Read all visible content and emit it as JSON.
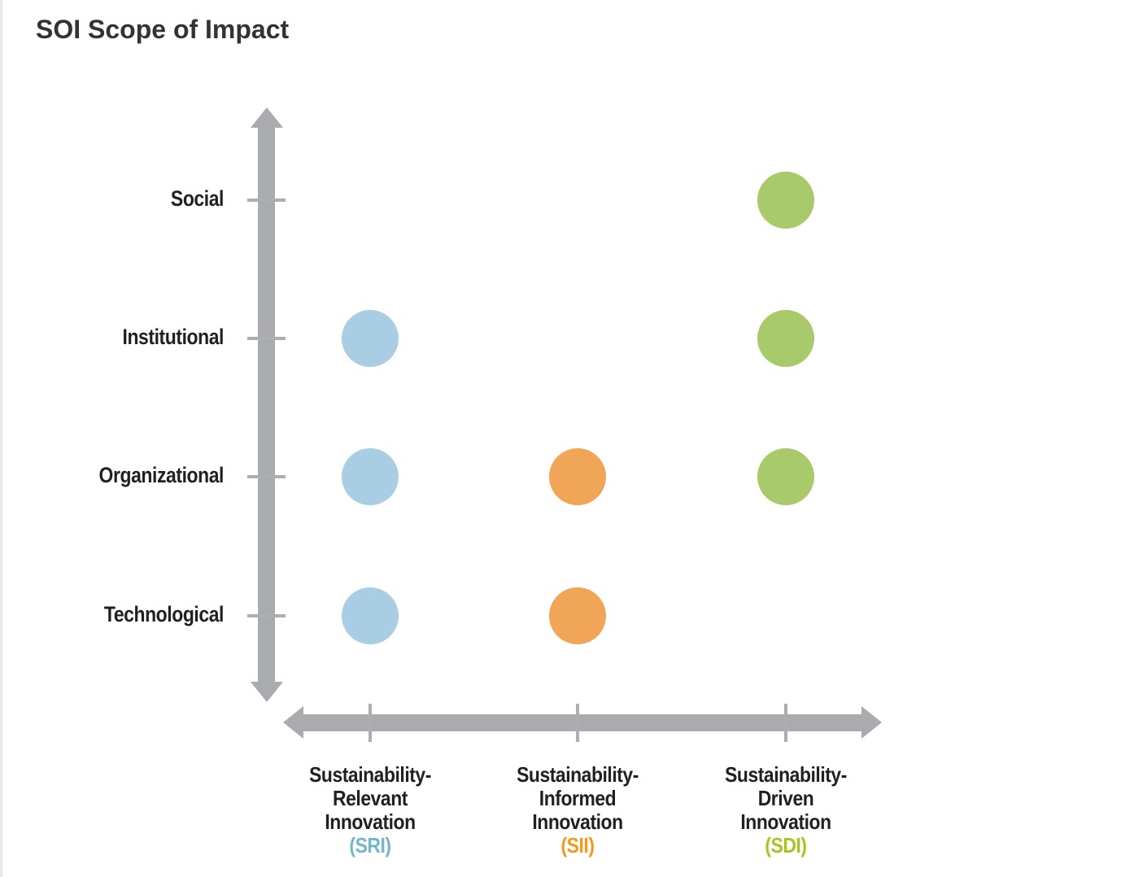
{
  "page": {
    "title": "SOI Scope of Impact"
  },
  "chart_data": {
    "type": "scatter",
    "title": "SOI Scope of Impact",
    "grid": false,
    "legend_position": "none",
    "y_axis": {
      "categories": [
        "Social",
        "Institutional",
        "Organizational",
        "Technological"
      ],
      "arrow": "both-ends"
    },
    "x_axis": {
      "categories": [
        {
          "id": "SRI",
          "label_lines": [
            "Sustainability-",
            "Relevant",
            "Innovation"
          ],
          "abbr": "(SRI)",
          "dot_color": "#A9CEE4",
          "abbr_color": "#73B5C9"
        },
        {
          "id": "SII",
          "label_lines": [
            "Sustainability-",
            "Informed",
            "Innovation"
          ],
          "abbr": "(SII)",
          "dot_color": "#F0A656",
          "abbr_color": "#F5991D"
        },
        {
          "id": "SDI",
          "label_lines": [
            "Sustainability-",
            "Driven",
            "Innovation"
          ],
          "abbr": "(SDI)",
          "dot_color": "#A9CA6A",
          "abbr_color": "#A5C51F"
        }
      ],
      "arrow": "both-ends"
    },
    "points": [
      {
        "x": "SDI",
        "y": "Social"
      },
      {
        "x": "SRI",
        "y": "Institutional"
      },
      {
        "x": "SDI",
        "y": "Institutional"
      },
      {
        "x": "SRI",
        "y": "Organizational"
      },
      {
        "x": "SII",
        "y": "Organizational"
      },
      {
        "x": "SDI",
        "y": "Organizational"
      },
      {
        "x": "SRI",
        "y": "Technological"
      },
      {
        "x": "SII",
        "y": "Technological"
      }
    ]
  },
  "colors": {
    "axis": "#A9ABAE",
    "tick": "#ACAEB1",
    "title_text": "#333333",
    "label_text": "#231F20",
    "page_border": "#E7E7E7",
    "background": "#FFFFFF"
  }
}
